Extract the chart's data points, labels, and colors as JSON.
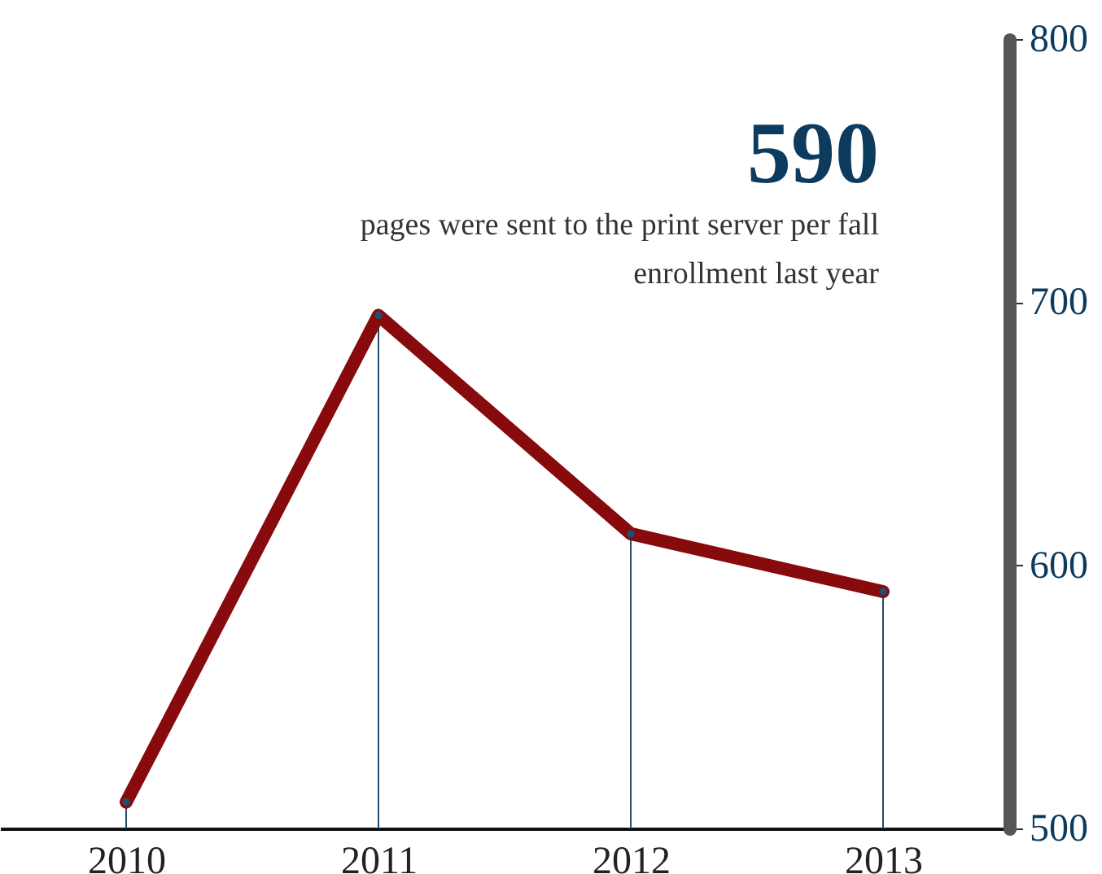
{
  "chart_data": {
    "type": "line",
    "title": "590",
    "subtitle": "pages were sent to the print server per fall enrollment last year",
    "categories": [
      "2010",
      "2011",
      "2012",
      "2013"
    ],
    "series": [
      {
        "type": "lollipop",
        "color": "#1f4e6e",
        "marker": "circle",
        "values": [
          510,
          695,
          612,
          590
        ]
      },
      {
        "color": "#870a0d",
        "marker": "none",
        "values": [
          510,
          695,
          612,
          590
        ]
      }
    ],
    "ylim": [
      500,
      800
    ],
    "yticks": [
      500,
      600,
      700,
      800
    ],
    "grid": false,
    "line_style": "solid"
  }
}
